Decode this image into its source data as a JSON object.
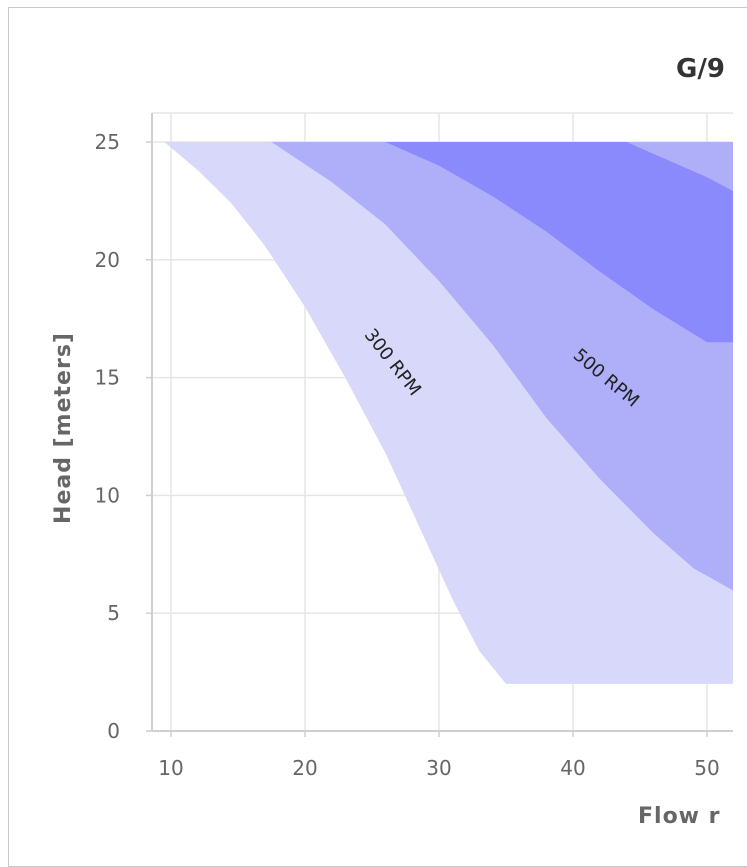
{
  "chart_data": {
    "type": "area",
    "title": "G/9",
    "xlabel": "Flow r",
    "ylabel": "Head [meters]",
    "xlim": [
      8.5,
      55
    ],
    "ylim": [
      0,
      26.5
    ],
    "x_ticks": [
      10,
      20,
      30,
      40,
      50
    ],
    "y_ticks": [
      0,
      5,
      10,
      15,
      20,
      25
    ],
    "grid": true,
    "series": [
      {
        "label": "300 RPM",
        "color": "#d8d8fb",
        "upper": [
          [
            9.5,
            25
          ],
          [
            12,
            23.8
          ],
          [
            14.5,
            22.4
          ],
          [
            17,
            20.6
          ],
          [
            20,
            18
          ],
          [
            23,
            15
          ],
          [
            26,
            11.8
          ],
          [
            28.5,
            8.7
          ],
          [
            31,
            5.6
          ],
          [
            33,
            3.4
          ],
          [
            35,
            2
          ]
        ],
        "lower_start": [
          [
            17.5,
            25
          ]
        ],
        "lower_end": [
          [
            35,
            2
          ],
          [
            55,
            2
          ]
        ]
      },
      {
        "label": "500 RPM",
        "color": "#aeaef9",
        "upper": [
          [
            17.5,
            25
          ],
          [
            22,
            23.3
          ],
          [
            26,
            21.5
          ],
          [
            30,
            19.1
          ],
          [
            34,
            16.4
          ],
          [
            38,
            13.3
          ],
          [
            42,
            10.7
          ],
          [
            46,
            8.4
          ],
          [
            49,
            6.9
          ]
        ],
        "lower_start": [
          [
            26,
            25
          ]
        ],
        "lower_end": [
          [
            55,
            2
          ]
        ]
      },
      {
        "label": "",
        "color": "#8a8afd",
        "upper": [
          [
            26,
            25
          ],
          [
            30,
            24
          ],
          [
            34,
            22.7
          ],
          [
            38,
            21.2
          ],
          [
            42,
            19.5
          ],
          [
            46,
            17.9
          ],
          [
            50,
            16.5
          ]
        ],
        "lower_start": [
          [
            44,
            25
          ],
          [
            50,
            23.5
          ],
          [
            55,
            22
          ]
        ],
        "lower_end": []
      }
    ],
    "curve_labels": [
      {
        "text": "300 RPM",
        "x": 26.2,
        "y": 15.5,
        "angle": 52
      },
      {
        "text": "500 RPM",
        "x": 42.2,
        "y": 14.8,
        "angle": 40
      }
    ]
  }
}
